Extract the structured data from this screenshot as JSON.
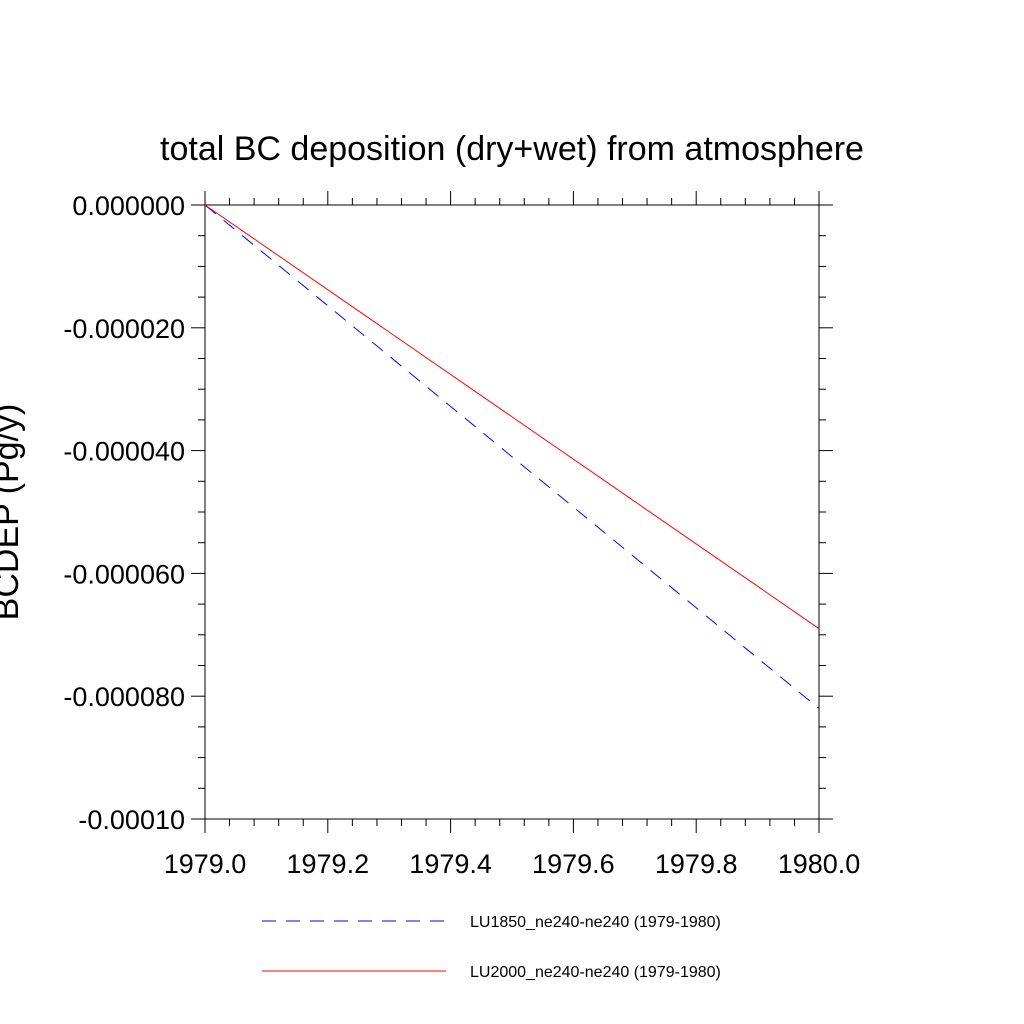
{
  "chart_data": {
    "type": "line",
    "title": "total BC deposition (dry+wet) from atmosphere",
    "ylabel": "BCDEP  (Pg/y)",
    "xlabel": "",
    "xlim": [
      1979.0,
      1980.0
    ],
    "ylim": [
      -0.0001,
      0.0
    ],
    "x_ticks": [
      "1979.0",
      "1979.2",
      "1979.4",
      "1979.6",
      "1979.8",
      "1980.0"
    ],
    "y_ticks": [
      "0.000000",
      "-0.000020",
      "-0.000040",
      "-0.000060",
      "-0.000080",
      "-0.00010"
    ],
    "grid": false,
    "legend_position": "bottom",
    "series": [
      {
        "name": "LU1850_ne240-ne240 (1979-1980)",
        "x": [
          1979.0,
          1980.0
        ],
        "values": [
          0.0,
          -8.2e-05
        ],
        "color": "#0000ff",
        "style": "dashed"
      },
      {
        "name": "LU2000_ne240-ne240 (1979-1980)",
        "x": [
          1979.0,
          1980.0
        ],
        "values": [
          0.0,
          -6.9e-05
        ],
        "color": "#ff0000",
        "style": "solid"
      }
    ]
  }
}
